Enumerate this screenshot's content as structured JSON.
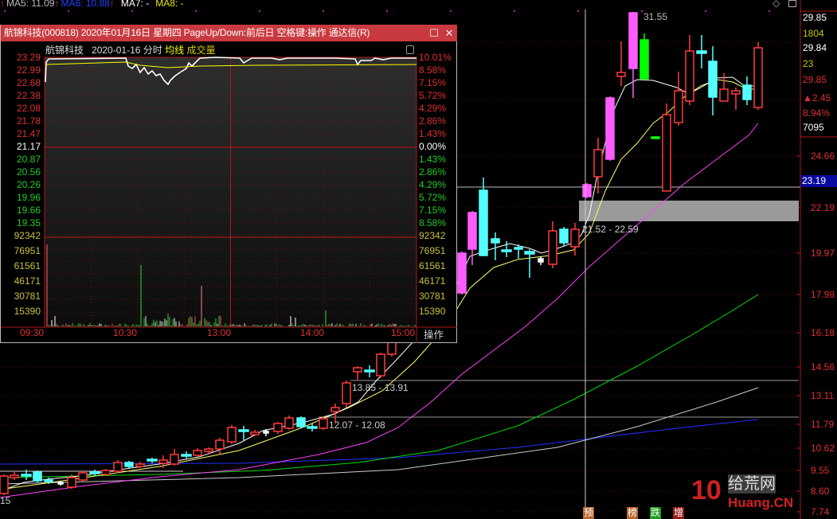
{
  "topbar": {
    "ma5": "MA5: 11.09",
    "ma6": "MA6: 10.88",
    "ma7": "MA7: -",
    "ma8": "MA8: -",
    "arrow": "↑",
    "colors": {
      "ma5": "#bbbbbb",
      "ma6": "#2040ff",
      "ma7": "#ffffff",
      "ma8": "#e6e600"
    }
  },
  "right_panel": {
    "values": [
      {
        "text": "29.85",
        "color": "#ffffff"
      },
      {
        "text": "1804",
        "color": "#c8c800"
      },
      {
        "text": "29.84",
        "color": "#ffffff"
      },
      {
        "text": "23",
        "color": "#c8c800"
      },
      {
        "text": "29.85",
        "color": "#e03030"
      },
      {
        "text": "▲2.45",
        "color": "#e03030"
      },
      {
        "text": "8.94%",
        "color": "#e03030"
      },
      {
        "text": "7095",
        "color": "#ffffff"
      }
    ],
    "axis_ticks": [
      "24.66",
      "22.19",
      "19.97",
      "17.98",
      "16.18",
      "14.56",
      "13.11",
      "11.79",
      "10.62",
      "9.55",
      "8.60",
      "7.74"
    ],
    "crosshair_price": "23.19"
  },
  "main_chart": {
    "high_label": "31.55",
    "zone_labels": [
      "21.52 - 22.59",
      "13.85 - 13.91",
      "12.07 - 12.08"
    ],
    "left_edge_label": "15",
    "markers": [
      {
        "text": "预",
        "color": "#b8642a"
      },
      {
        "text": "榜",
        "color": "#b8642a"
      },
      {
        "text": "跌",
        "color": "#1a9a1a"
      },
      {
        "text": "增",
        "color": "#9a1a1a"
      }
    ],
    "colors": {
      "up": "#ff3b3b",
      "down": "#54ffff",
      "limit_up": "#ff5cff",
      "limit_down": "#00ff00",
      "ma5": "#ffffff",
      "ma10": "#ffff66",
      "ma20": "#ff40ff",
      "ma60": "#00dd00",
      "ma120": "#cccccc",
      "ma250": "#2030ff"
    }
  },
  "popup": {
    "title": "航锦科技(000818) 2020年01月16日 星期四 PageUp/Down:前后日 空格键:操作 通达信(R)",
    "stock_name": "航锦科技",
    "date": "2020-01-16",
    "mode": "分时",
    "avg_line": "均线",
    "volume": "成交量",
    "price_ticks": [
      "23.29",
      "22.99",
      "22.68",
      "22.38",
      "22.08",
      "21.78",
      "21.47",
      "21.17",
      "20.87",
      "20.56",
      "20.26",
      "19.96",
      "19.66",
      "19.35"
    ],
    "pct_ticks": [
      "10.01%",
      "8.58%",
      "7.15%",
      "5.72%",
      "4.29%",
      "2.86%",
      "1.43%",
      "0.00%",
      "1.43%",
      "2.86%",
      "4.29%",
      "5.72%",
      "7.15%",
      "8.58%"
    ],
    "volume_ticks": [
      "92342",
      "76951",
      "61561",
      "46171",
      "30781",
      "15390"
    ],
    "time_ticks": [
      "09:30",
      "10:30",
      "13:00",
      "14:00",
      "15:00"
    ],
    "operate": "操作",
    "colors": {
      "title_bg": "#c83a40",
      "price_line": "#ffffff",
      "avg_line": "#ffff00"
    }
  },
  "watermark": {
    "logo": "10",
    "name": "给荒网",
    "domain": "Huang.CN"
  }
}
